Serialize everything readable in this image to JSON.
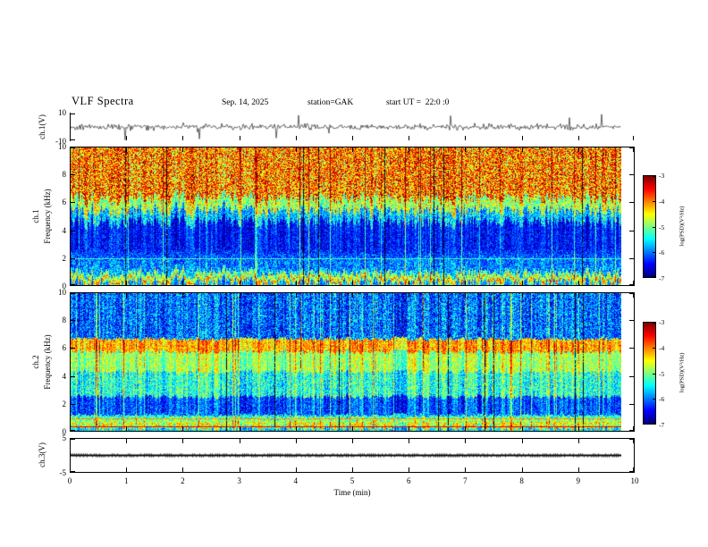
{
  "figure": {
    "title": "VLF Spectra",
    "date": "Sep. 14, 2025",
    "station": "station=GAK",
    "start_ut": "start UT =  22:0 :0"
  },
  "x_axis": {
    "label": "Time (min)",
    "min": 0,
    "max": 10,
    "ticks": [
      0,
      1,
      2,
      3,
      4,
      5,
      6,
      7,
      8,
      9,
      10
    ],
    "data_end_min": 9.8
  },
  "colorbar": {
    "label": "log(PSD)(V²/Hz)",
    "ticks": [
      -3,
      -4,
      -5,
      -6,
      -7
    ],
    "colormap": "jet"
  },
  "panels": {
    "ch1_wave": {
      "ylabel": "ch.1(V)",
      "ymin": -10,
      "ymax": 10,
      "yticks": [
        10,
        -10
      ]
    },
    "ch1_spec": {
      "ylabel_channel": "ch.1",
      "ylabel_axis": "Frequency (kHz)",
      "ymin": 0,
      "ymax": 10,
      "yticks": [
        10,
        8,
        6,
        4,
        2,
        0
      ]
    },
    "ch2_spec": {
      "ylabel_channel": "ch.2",
      "ylabel_axis": "Frequency (kHz)",
      "ymin": 0,
      "ymax": 10,
      "yticks": [
        10,
        8,
        6,
        4,
        2,
        0
      ]
    },
    "ch3_wave": {
      "ylabel": "ch.3(V)",
      "ymin": -5,
      "ymax": 5,
      "yticks": [
        5,
        -5
      ]
    }
  },
  "chart_data": [
    {
      "name": "ch1_waveform",
      "type": "line",
      "x_range_min": [
        0,
        9.8
      ],
      "ylim_V": [
        -10,
        10
      ],
      "baseline_V": 0,
      "noise_amplitude_V": 1.3,
      "spike_probability": 0.025,
      "spike_amplitude_range_V": [
        3,
        9.5
      ],
      "description": "broadband noise around 0 V with frequent impulsive spikes approaching +/-10 V across the full 9.8 min record"
    },
    {
      "name": "ch1_spectrogram",
      "type": "heatmap",
      "x_range_min": [
        0,
        9.8
      ],
      "ylim_kHz": [
        0,
        10
      ],
      "value_label": "log(PSD)(V²/Hz)",
      "value_range": [
        -7,
        -3
      ],
      "colormap": "jet",
      "bands": [
        {
          "f_kHz": [
            6.3,
            10
          ],
          "level": -4.0,
          "noise": 1.0
        },
        {
          "f_kHz": [
            5.4,
            6.3
          ],
          "level": -4.8,
          "noise": 0.7
        },
        {
          "f_kHz": [
            4.6,
            5.4
          ],
          "level": -5.7,
          "noise": 0.6
        },
        {
          "f_kHz": [
            2.2,
            4.6
          ],
          "level": -6.4,
          "noise": 0.45
        },
        {
          "f_kHz": [
            0.9,
            2.2
          ],
          "level": -6.0,
          "noise": 0.55
        },
        {
          "f_kHz": [
            0.62,
            0.9
          ],
          "level": -5.0,
          "noise": 0.5
        },
        {
          "f_kHz": [
            0.3,
            0.62
          ],
          "level": -4.3,
          "noise": 0.7
        },
        {
          "f_kHz": [
            0.12,
            0.3
          ],
          "level": -5.0,
          "noise": 0.4
        },
        {
          "f_kHz": [
            0,
            0.12
          ],
          "level": -5.8,
          "noise": 0.4
        }
      ],
      "lines": [
        {
          "f_kHz": 1.95,
          "width_kHz": 0.07,
          "level": -5.3
        },
        {
          "f_kHz": 0.75,
          "width_kHz": 0.05,
          "level": -6.3
        }
      ],
      "texture": {
        "vertical_stripe_strength": 0.5,
        "bright_column_probability": 0.06,
        "dark_column_probability": 0.018,
        "edge_raggedness_kHz": 0.8,
        "red_speckle_probability": 0,
        "red_streak_probability": 0
      }
    },
    {
      "name": "ch2_spectrogram",
      "type": "heatmap",
      "x_range_min": [
        0,
        9.8
      ],
      "ylim_kHz": [
        0,
        10
      ],
      "value_label": "log(PSD)(V²/Hz)",
      "value_range": [
        -7,
        -3
      ],
      "colormap": "jet",
      "bands": [
        {
          "f_kHz": [
            6.7,
            10
          ],
          "level": -6.1,
          "noise": 0.7
        },
        {
          "f_kHz": [
            5.75,
            6.7
          ],
          "level": -4.2,
          "noise": 0.55
        },
        {
          "f_kHz": [
            4.3,
            5.75
          ],
          "level": -4.9,
          "noise": 0.5
        },
        {
          "f_kHz": [
            2.5,
            4.3
          ],
          "level": -5.4,
          "noise": 0.6
        },
        {
          "f_kHz": [
            1.15,
            2.5
          ],
          "level": -6.2,
          "noise": 0.5
        },
        {
          "f_kHz": [
            0.75,
            1.15
          ],
          "level": -5.2,
          "noise": 0.55
        },
        {
          "f_kHz": [
            0.45,
            0.75
          ],
          "level": -4.6,
          "noise": 0.6
        },
        {
          "f_kHz": [
            0.2,
            0.45
          ],
          "level": -4.8,
          "noise": 0.75
        },
        {
          "f_kHz": [
            0,
            0.2
          ],
          "level": -5.6,
          "noise": 0.45
        }
      ],
      "lines": [
        {
          "f_kHz": 0.33,
          "width_kHz": 0.08,
          "level": -3.4
        },
        {
          "f_kHz": 0.92,
          "width_kHz": 0.05,
          "level": -4.1
        }
      ],
      "texture": {
        "vertical_stripe_strength": 0.65,
        "bright_column_probability": 0.1,
        "dark_column_probability": 0.012,
        "edge_raggedness_kHz": 0.25,
        "red_speckle_probability": 0.007,
        "red_streak_probability": 0.005
      }
    },
    {
      "name": "ch3_waveform",
      "type": "line",
      "x_range_min": [
        0,
        9.8
      ],
      "ylim_V": [
        -5,
        5
      ],
      "value_V": 0,
      "description": "flat trace at 0 V for the entire record"
    }
  ]
}
